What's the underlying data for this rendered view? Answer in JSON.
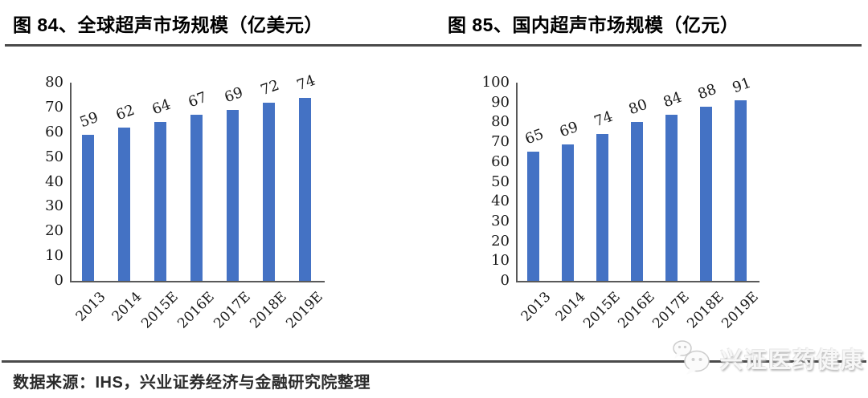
{
  "colors": {
    "bar": "#4472C4",
    "axis_line": "#595959",
    "divider_rule": "#4a4a4a",
    "tick_text": "#1a1a1a",
    "title_text": "#000000"
  },
  "chart_data": [
    {
      "type": "bar",
      "title": "图 84、全球超声市场规模（亿美元）",
      "categories": [
        "2013",
        "2014",
        "2015E",
        "2016E",
        "2017E",
        "2018E",
        "2019E"
      ],
      "values": [
        59,
        62,
        64,
        67,
        69,
        72,
        74
      ],
      "xlabel": "",
      "ylabel": "",
      "ylim": [
        0,
        80
      ],
      "ytick_step": 10,
      "grid": false,
      "legend": false,
      "data_labels": true
    },
    {
      "type": "bar",
      "title": "图 85、国内超声市场规模（亿元）",
      "categories": [
        "2013",
        "2014",
        "2015E",
        "2016E",
        "2017E",
        "2018E",
        "2019E"
      ],
      "values": [
        65,
        69,
        74,
        80,
        84,
        88,
        91
      ],
      "xlabel": "",
      "ylabel": "",
      "ylim": [
        0,
        100
      ],
      "ytick_step": 10,
      "grid": false,
      "legend": false,
      "data_labels": true
    }
  ],
  "footer": {
    "source": "数据来源：IHS，兴业证券经济与金融研究院整理"
  },
  "watermark": {
    "label": "兴证医药健康",
    "icon": "wechat-chat-bubbles-icon"
  }
}
